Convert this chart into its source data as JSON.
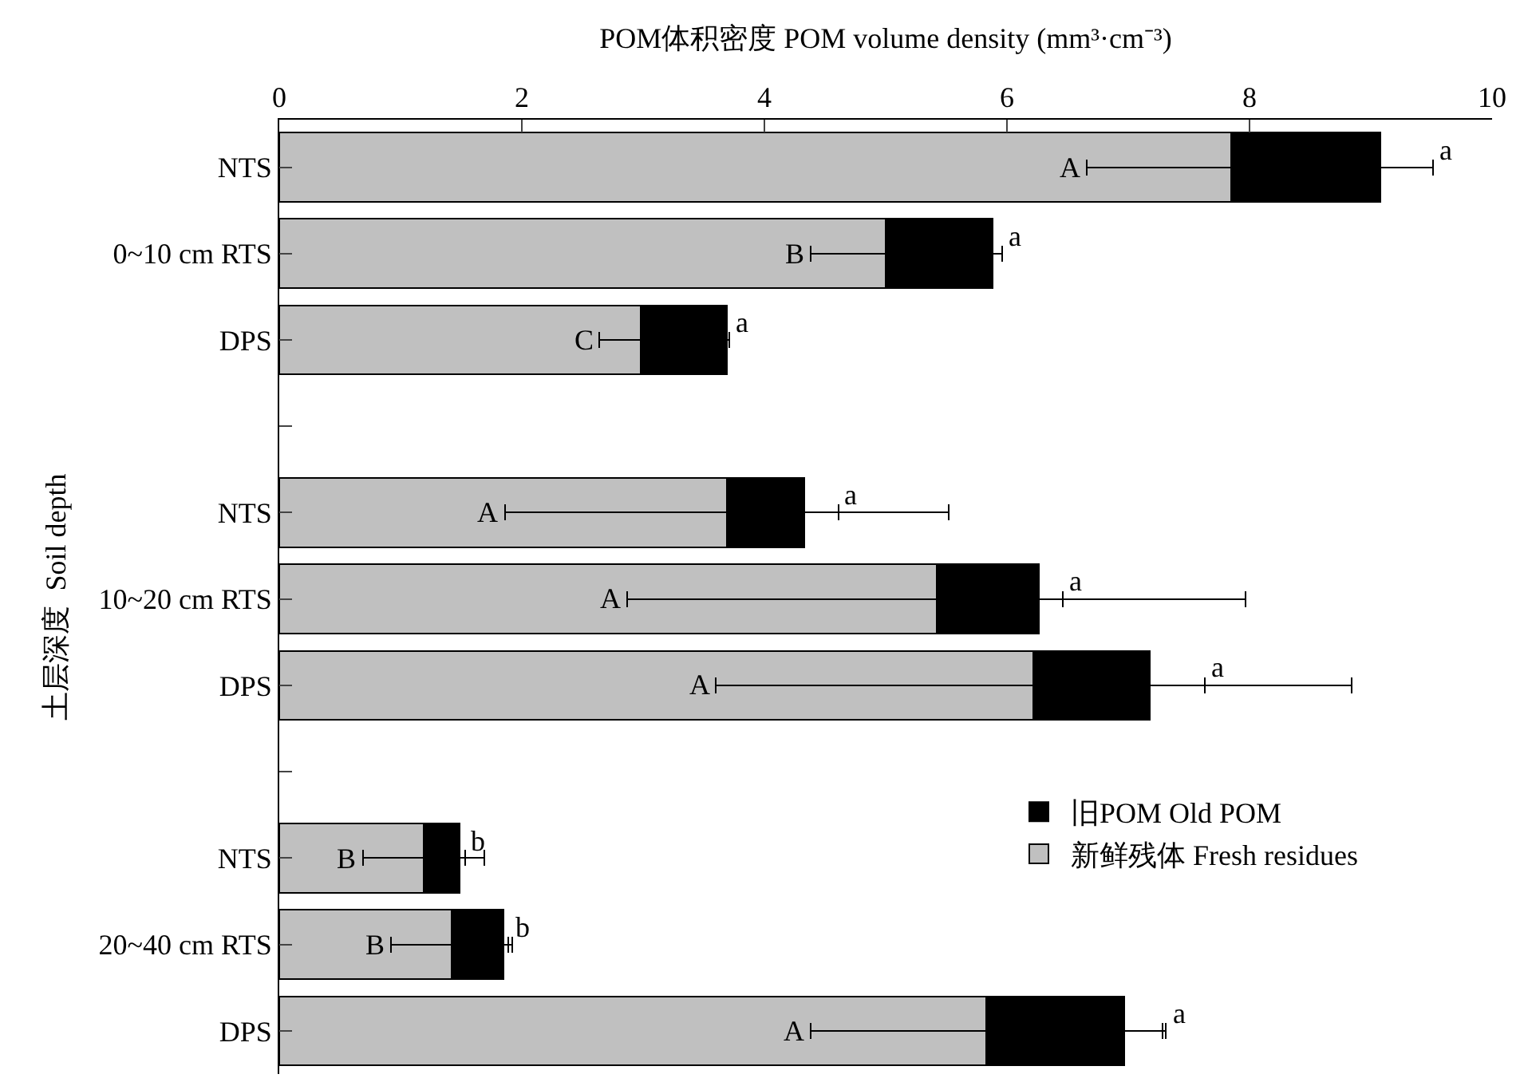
{
  "chart_data": {
    "type": "bar",
    "orientation": "horizontal",
    "stacked": true,
    "xlabel": "POM体积密度 POM volume density (mm³·cm⁻³)",
    "ylabel": "土层深度  Soil depth",
    "categories": [
      "NTS",
      "0~10 cm RTS",
      "DPS",
      null,
      "NTS",
      "10~20 cm RTS",
      "DPS",
      null,
      "NTS",
      "20~40 cm RTS",
      "DPS"
    ],
    "series": [
      {
        "name": "新鲜残体 Fresh residues",
        "color": "#c0c0c0",
        "values": [
          7.85,
          5.0,
          2.98,
          null,
          3.69,
          5.42,
          6.22,
          null,
          1.19,
          1.42,
          5.83
        ],
        "errors": [
          1.19,
          0.62,
          0.34,
          null,
          1.83,
          2.55,
          2.62,
          null,
          0.5,
          0.5,
          1.45
        ],
        "value_labels": [
          "A",
          "B",
          "C",
          null,
          "A",
          "A",
          "A",
          null,
          "B",
          "B",
          "A"
        ]
      },
      {
        "name": "旧POM Old POM",
        "color": "#000000",
        "values": [
          1.23,
          0.88,
          0.71,
          null,
          0.64,
          0.84,
          0.96,
          null,
          0.3,
          0.43,
          1.14
        ],
        "errors": [
          0.43,
          0.08,
          0.02,
          null,
          0.28,
          0.2,
          0.45,
          null,
          0.04,
          0.04,
          0.34
        ],
        "value_labels": [
          "a",
          "a",
          "a",
          null,
          "a",
          "a",
          "a",
          null,
          "b",
          "b",
          "a"
        ]
      }
    ],
    "xlim": [
      0,
      10
    ],
    "xticks": [
      0,
      2,
      4,
      6,
      8,
      10
    ],
    "legend": "bottom right"
  }
}
